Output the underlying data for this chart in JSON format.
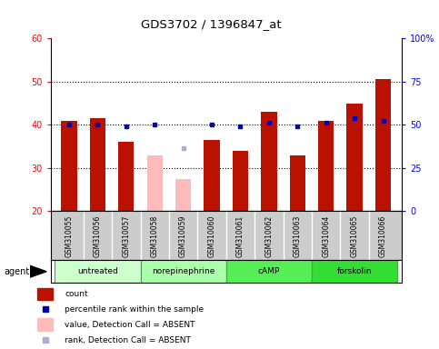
{
  "title": "GDS3702 / 1396847_at",
  "samples": [
    "GSM310055",
    "GSM310056",
    "GSM310057",
    "GSM310058",
    "GSM310059",
    "GSM310060",
    "GSM310061",
    "GSM310062",
    "GSM310063",
    "GSM310064",
    "GSM310065",
    "GSM310066"
  ],
  "counts": [
    41,
    41.5,
    36,
    33,
    27.5,
    36.5,
    34,
    43,
    33,
    41,
    45,
    50.5
  ],
  "absent_flags": [
    false,
    false,
    false,
    true,
    true,
    false,
    false,
    false,
    false,
    false,
    false,
    false
  ],
  "percentile_ranks": [
    50,
    50,
    49,
    50,
    36.5,
    50,
    49,
    51,
    49,
    51,
    54,
    52
  ],
  "rank_absent_flags": [
    false,
    false,
    false,
    false,
    true,
    false,
    false,
    false,
    false,
    false,
    false,
    false
  ],
  "groups": [
    {
      "label": "untreated",
      "start": 0,
      "end": 3,
      "color": "#ccffcc"
    },
    {
      "label": "norepinephrine",
      "start": 3,
      "end": 6,
      "color": "#aaffaa"
    },
    {
      "label": "cAMP",
      "start": 6,
      "end": 9,
      "color": "#55ee55"
    },
    {
      "label": "forskolin",
      "start": 9,
      "end": 12,
      "color": "#33dd33"
    }
  ],
  "ylim_left": [
    20,
    60
  ],
  "ylim_right": [
    0,
    100
  ],
  "yticks_left": [
    20,
    30,
    40,
    50,
    60
  ],
  "yticks_right": [
    0,
    25,
    50,
    75,
    100
  ],
  "ytick_labels_right": [
    "0",
    "25",
    "50",
    "75",
    "100%"
  ],
  "bar_color_present": "#bb1100",
  "bar_color_absent": "#ffbbbb",
  "dot_color_present": "#0000bb",
  "dot_color_absent": "#aaaadd",
  "bar_width": 0.55,
  "sample_bg": "#cccccc",
  "plot_bg": "#ffffff",
  "agent_label": "agent",
  "fig_bg": "#ffffff"
}
